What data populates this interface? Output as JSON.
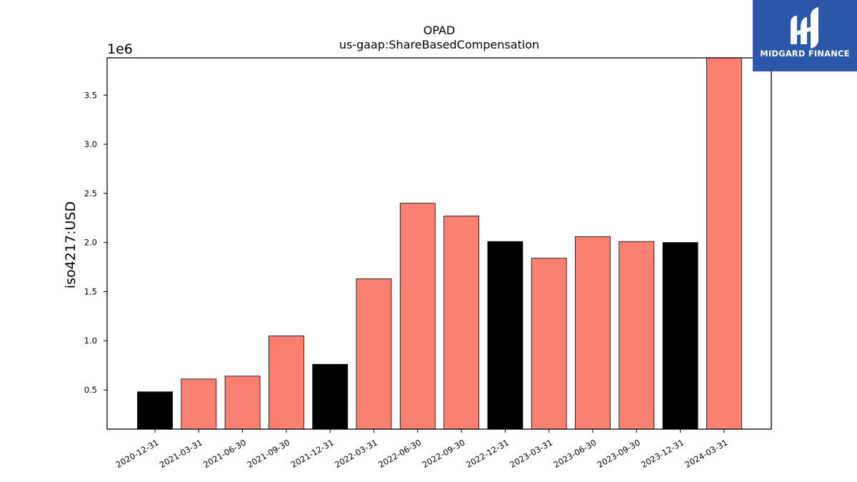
{
  "chart_data": {
    "type": "bar",
    "title": "OPAD",
    "subtitle": "us-gaap:ShareBasedCompensation",
    "xlabel": "",
    "ylabel": "iso4217:USD",
    "y_multiplier_label": "1e6",
    "ylim": [
      0.1,
      3.88
    ],
    "yticks": [
      0.5,
      1.0,
      1.5,
      2.0,
      2.5,
      3.0,
      3.5
    ],
    "ytick_labels": [
      "0.5",
      "1.0",
      "1.5",
      "2.0",
      "2.5",
      "3.0",
      "3.5"
    ],
    "grid": false,
    "categories": [
      "2020-12-31",
      "2021-03-31",
      "2021-06-30",
      "2021-09-30",
      "2021-12-31",
      "2022-03-31",
      "2022-06-30",
      "2022-09-30",
      "2022-12-31",
      "2023-03-31",
      "2023-06-30",
      "2023-09-30",
      "2023-12-31",
      "2024-03-31"
    ],
    "values": [
      0.48,
      0.61,
      0.64,
      1.05,
      0.76,
      1.63,
      2.4,
      2.27,
      2.01,
      1.84,
      2.06,
      2.01,
      2.0,
      3.88
    ],
    "bar_colors": [
      "#000000",
      "#fa8072",
      "#fa8072",
      "#fa8072",
      "#000000",
      "#fa8072",
      "#fa8072",
      "#fa8072",
      "#000000",
      "#fa8072",
      "#fa8072",
      "#fa8072",
      "#000000",
      "#fa8072"
    ]
  },
  "logo": {
    "text": "MIDGARD FINANCE",
    "bg_color": "#2a57a8"
  }
}
